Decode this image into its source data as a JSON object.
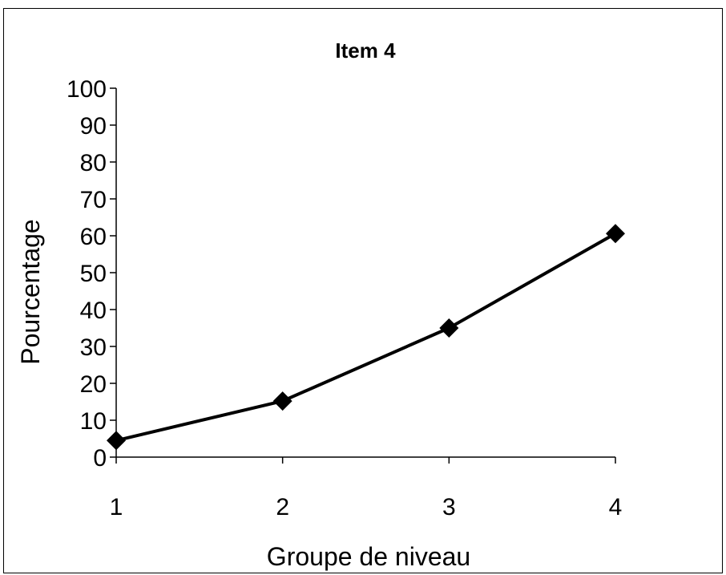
{
  "chart_data": {
    "type": "line",
    "title": "Item 4",
    "xlabel": "Groupe de niveau",
    "ylabel": "Pourcentage",
    "categories": [
      "1",
      "2",
      "3",
      "4"
    ],
    "series": [
      {
        "values": [
          4.5,
          15.2,
          35.0,
          60.6
        ]
      }
    ],
    "ylim": [
      0,
      100
    ],
    "yticks": [
      "0",
      "10",
      "20",
      "30",
      "40",
      "50",
      "60",
      "70",
      "80",
      "90",
      "100"
    ],
    "grid": false,
    "legend": "none",
    "marker": "diamond",
    "line_color": "#000000",
    "marker_color": "#000000"
  }
}
